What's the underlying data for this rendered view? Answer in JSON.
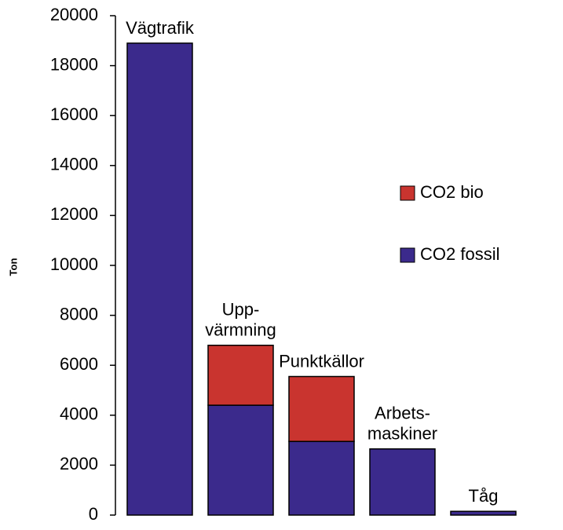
{
  "chart_data": {
    "type": "stacked_bar",
    "y_label": "Ton",
    "categories": [
      [
        "Vägtrafik"
      ],
      [
        "Upp-",
        "värmning"
      ],
      [
        "Punktkällor"
      ],
      [
        "Arbets-",
        "maskiner"
      ],
      [
        "Tåg"
      ]
    ],
    "series": [
      {
        "name": "CO2 fossil",
        "color": "#3b2a8c",
        "values": [
          18900,
          4400,
          2950,
          2650,
          150
        ]
      },
      {
        "name": "CO2 bio",
        "color": "#c9342f",
        "values": [
          0,
          2400,
          2600,
          0,
          0
        ]
      }
    ],
    "ylim": [
      0,
      20000
    ],
    "yticks": [
      0,
      2000,
      4000,
      6000,
      8000,
      10000,
      12000,
      14000,
      16000,
      18000,
      20000
    ],
    "legend": "right"
  }
}
